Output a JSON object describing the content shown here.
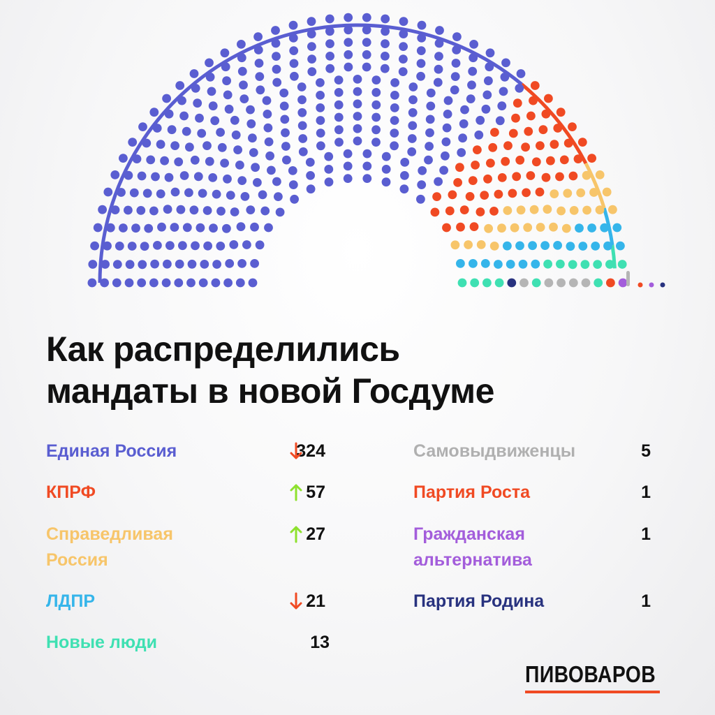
{
  "header": {
    "title_line1": "Как распределились",
    "title_line2": "мандаты в новой Госдуме"
  },
  "brand": {
    "name": "ПИВОВАРОВ",
    "accent": "#f04a23"
  },
  "chart_data": {
    "type": "parliament",
    "title": "Как распределились мандаты в новой Госдуме",
    "total_seats": 450,
    "series": [
      {
        "name": "Единая Россия",
        "seats": 324,
        "trend": "down",
        "color": "#5a5ed1"
      },
      {
        "name": "КПРФ",
        "seats": 57,
        "trend": "up",
        "color": "#f04a23"
      },
      {
        "name": "Справедливая Россия",
        "seats": 27,
        "trend": "up",
        "color": "#f7c56a"
      },
      {
        "name": "ЛДПР",
        "seats": 21,
        "trend": "down",
        "color": "#35b5ea"
      },
      {
        "name": "Новые люди",
        "seats": 13,
        "trend": "none",
        "color": "#3fe0b2"
      },
      {
        "name": "Самовыдвиженцы",
        "seats": 5,
        "trend": "none",
        "color": "#b5b5b5"
      },
      {
        "name": "Партия Роста",
        "seats": 1,
        "trend": "none",
        "color": "#f04a23"
      },
      {
        "name": "Гражданская альтернатива",
        "seats": 1,
        "trend": "none",
        "color": "#a35ddb"
      },
      {
        "name": "Партия Родина",
        "seats": 1,
        "trend": "none",
        "color": "#28327f"
      }
    ],
    "trend_colors": {
      "up": "#8ee12e",
      "down": "#f04a23"
    }
  },
  "legend": {
    "left": [
      {
        "label_line1": "Единая Россия",
        "label_line2": "",
        "value": "324",
        "trend": "down"
      },
      {
        "label_line1": "КПРФ",
        "label_line2": "",
        "value": "57",
        "trend": "up"
      },
      {
        "label_line1": "Справедливая",
        "label_line2": "Россия",
        "value": "27",
        "trend": "up"
      },
      {
        "label_line1": "ЛДПР",
        "label_line2": "",
        "value": "21",
        "trend": "down"
      },
      {
        "label_line1": "Новые люди",
        "label_line2": "",
        "value": "13",
        "trend": "none"
      }
    ],
    "right": [
      {
        "label_line1": "Самовыдвиженцы",
        "label_line2": "",
        "value": "5",
        "trend": "none"
      },
      {
        "label_line1": "Партия Роста",
        "label_line2": "",
        "value": "1",
        "trend": "none"
      },
      {
        "label_line1": "Гражданская",
        "label_line2": "альтернатива",
        "value": "1",
        "trend": "none"
      },
      {
        "label_line1": "Партия Родина",
        "label_line2": "",
        "value": "1",
        "trend": "none"
      }
    ]
  }
}
